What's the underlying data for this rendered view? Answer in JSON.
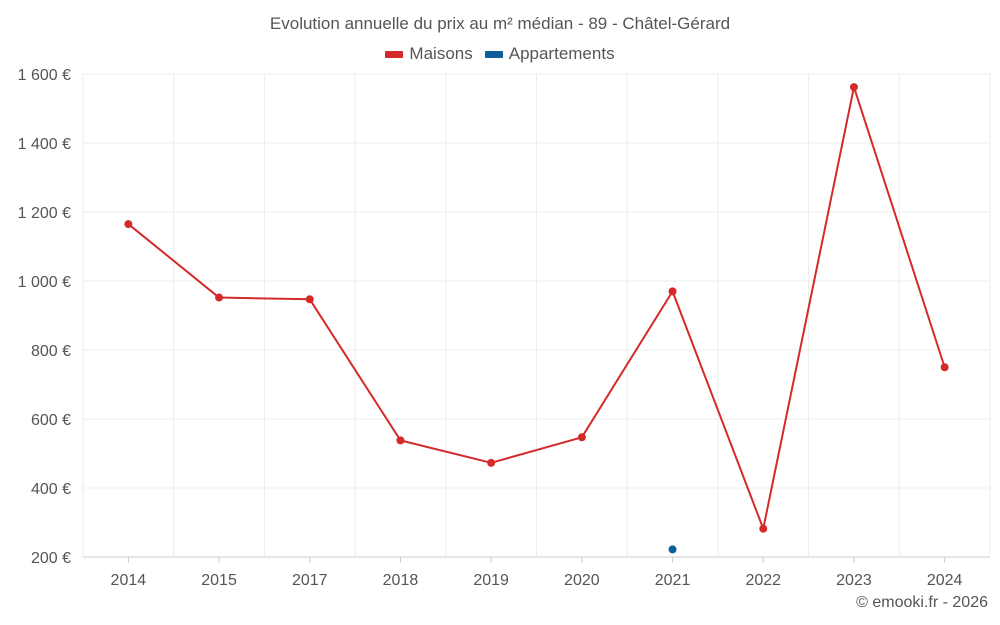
{
  "chart_data": {
    "type": "line",
    "title": "Evolution annuelle du prix au m² médian - 89 - Châtel-Gérard",
    "categories": [
      "2014",
      "2015",
      "2017",
      "2018",
      "2019",
      "2020",
      "2021",
      "2022",
      "2023",
      "2024"
    ],
    "series": [
      {
        "name": "Maisons",
        "color": "#d42a2a",
        "values": [
          1165,
          952,
          947,
          538,
          473,
          547,
          970,
          282,
          1562,
          750
        ]
      },
      {
        "name": "Appartements",
        "color": "#0b5f9a",
        "values": [
          null,
          null,
          null,
          null,
          null,
          null,
          222,
          null,
          null,
          null
        ]
      }
    ],
    "yticks": [
      200,
      400,
      600,
      800,
      1000,
      1200,
      1400,
      1600
    ],
    "ytick_labels": [
      "200 €",
      "400 €",
      "600 €",
      "800 €",
      "1 000 €",
      "1 200 €",
      "1 400 €",
      "1 600 €"
    ],
    "ylim": [
      200,
      1600
    ],
    "xlabel": "",
    "ylabel": "",
    "grid": true,
    "legend": "top-center"
  },
  "credit": "© emooki.fr - 2026"
}
